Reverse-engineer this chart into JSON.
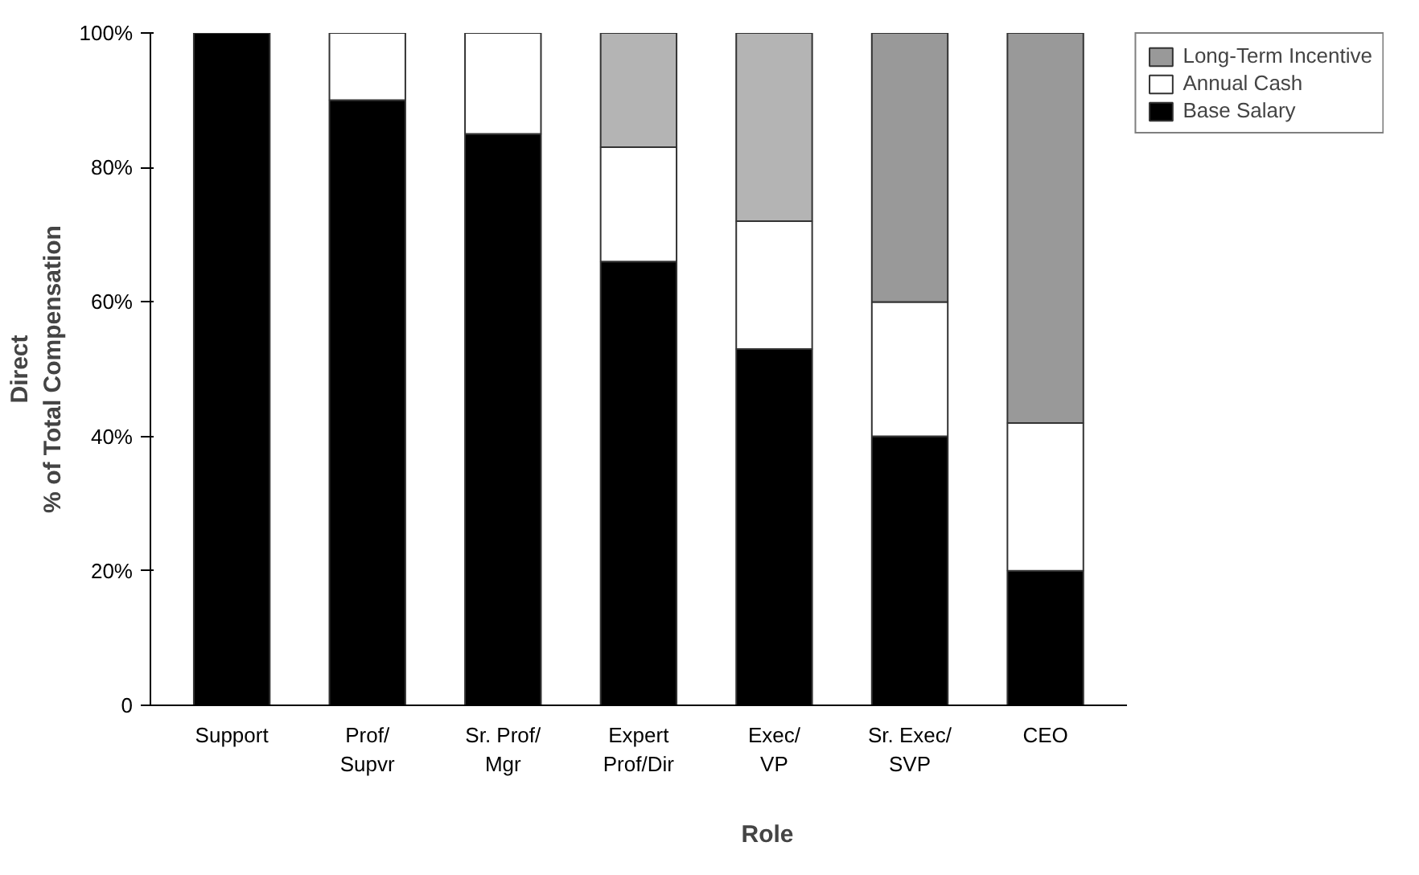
{
  "chart_data": {
    "type": "bar",
    "stacked": true,
    "xlabel": "Role",
    "ylabel": "Direct\n% of Total Compensation",
    "categories": [
      "Support",
      "Prof/\nSupvr",
      "Sr. Prof/\nMgr",
      "Expert\nProf/Dir",
      "Exec/\nVP",
      "Sr. Exec/\nSVP",
      "CEO"
    ],
    "series": [
      {
        "name": "Base Salary",
        "color": "#000000",
        "values": [
          100,
          90,
          85,
          66,
          53,
          40,
          20
        ]
      },
      {
        "name": "Annual Cash",
        "color": "#ffffff",
        "values": [
          0,
          10,
          15,
          17,
          19,
          20,
          22
        ]
      },
      {
        "name": "Long-Term Incentive",
        "color": "#999999",
        "colors": [
          "#b4b4b4",
          "#b4b4b4",
          "#b4b4b4",
          "#b4b4b4",
          "#b4b4b4",
          "#999999",
          "#999999"
        ],
        "values": [
          0,
          0,
          0,
          17,
          28,
          40,
          58
        ]
      }
    ],
    "ylim": [
      0,
      100
    ],
    "yticks": [
      0,
      {
        "value": 20,
        "label": "20%"
      },
      {
        "value": 40,
        "label": "40%"
      },
      {
        "value": 60,
        "label": "60%"
      },
      {
        "value": 80,
        "label": "80%"
      },
      {
        "value": 100,
        "label": "100%"
      }
    ],
    "grid": false,
    "legend": "right"
  }
}
